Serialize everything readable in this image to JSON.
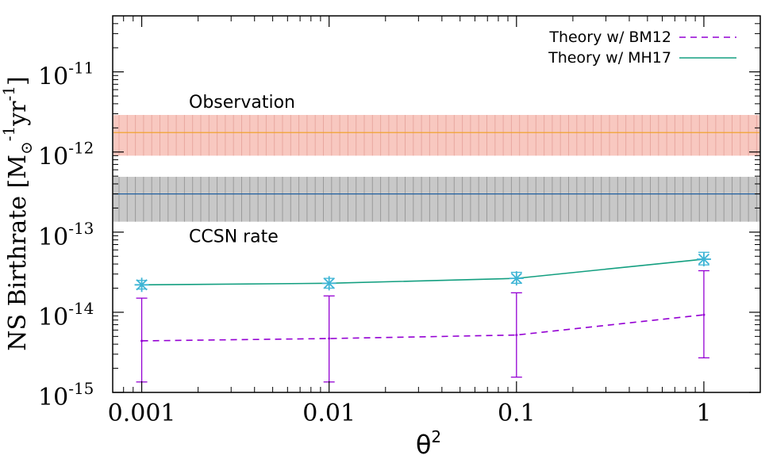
{
  "chart_data": {
    "type": "line",
    "xscale": "log",
    "yscale": "log",
    "xlim": [
      0.0007,
      2.0
    ],
    "ylim": [
      1e-15,
      5e-11
    ],
    "xlabel": {
      "base": "θ",
      "sup": "2"
    },
    "ylabel": {
      "text": "NS Birthrate [M",
      "sub": "⊙",
      "sup1": "-1",
      "mid": "yr",
      "sup2": "-1",
      "end": "]"
    },
    "xticks": [
      {
        "value": 0.001,
        "label": "0.001"
      },
      {
        "value": 0.01,
        "label": "0.01"
      },
      {
        "value": 0.1,
        "label": "0.1"
      },
      {
        "value": 1,
        "label": "1"
      }
    ],
    "yticks": [
      {
        "value": 1e-11,
        "base": "10",
        "exp": "-11"
      },
      {
        "value": 1e-12,
        "base": "10",
        "exp": "-12"
      },
      {
        "value": 1e-13,
        "base": "10",
        "exp": "-13"
      },
      {
        "value": 1e-14,
        "base": "10",
        "exp": "-14"
      },
      {
        "value": 1e-15,
        "base": "10",
        "exp": "-15"
      }
    ],
    "bands": [
      {
        "label": "Observation",
        "center": 1.75e-12,
        "low": 9e-13,
        "high": 2.9e-12,
        "fill": "#f8c8c0",
        "line": "#f0a020",
        "hatch": "#e8a8a0"
      },
      {
        "label": "CCSN rate",
        "center": 3e-13,
        "low": 1.35e-13,
        "high": 4.9e-13,
        "fill": "#c8c8c8",
        "line": "#1f5fa0",
        "hatch": "#9a9a9a"
      }
    ],
    "series": [
      {
        "name": "Theory w/ BM12",
        "color": "#9400d3",
        "dash": "8,6",
        "x": [
          0.001,
          0.01,
          0.1,
          1
        ],
        "y": [
          4.4e-15,
          4.7e-15,
          5.2e-15,
          9.3e-15
        ],
        "err_low": [
          1.35e-15,
          1.35e-15,
          1.55e-15,
          2.7e-15
        ],
        "err_high": [
          1.5e-14,
          1.6e-14,
          1.75e-14,
          3.3e-14
        ],
        "marker": "none"
      },
      {
        "name": "Theory w/ MH17",
        "color": "#139f80",
        "dash": "",
        "x": [
          0.001,
          0.01,
          0.1,
          1
        ],
        "y": [
          2.2e-14,
          2.3e-14,
          2.65e-14,
          4.6e-14
        ],
        "err_low": [
          1.95e-14,
          2e-14,
          2.3e-14,
          3.9e-14
        ],
        "err_high": [
          2.5e-14,
          2.65e-14,
          3.15e-14,
          5.6e-14
        ],
        "marker": "star",
        "marker_color": "#3eb5d5"
      }
    ],
    "legend": "top-right",
    "grid": false
  }
}
